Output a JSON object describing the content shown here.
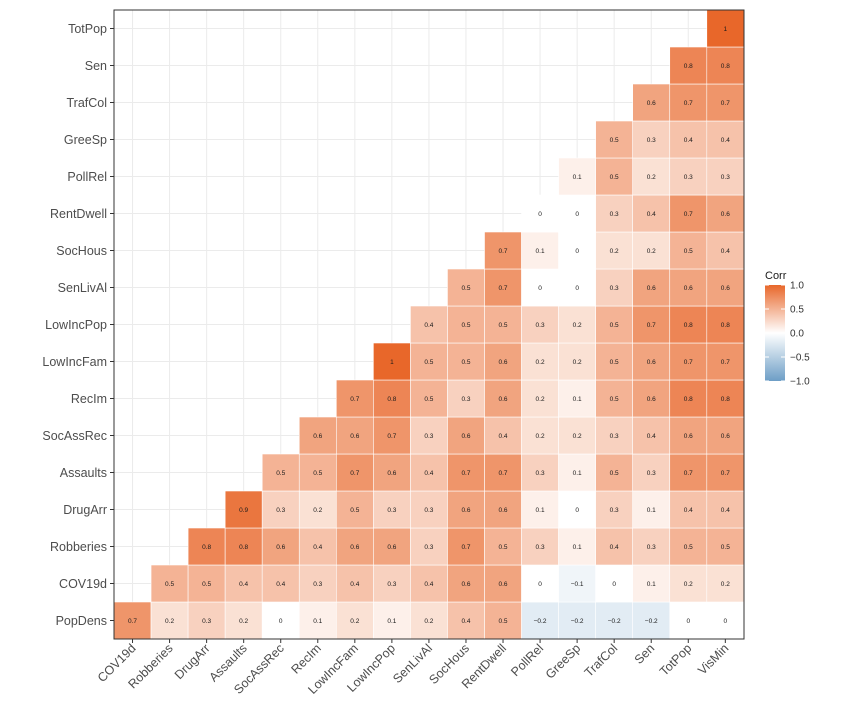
{
  "chart_data": {
    "type": "heatmap",
    "variables": [
      "PopDens",
      "COV19d",
      "Robberies",
      "DrugArr",
      "Assaults",
      "SocAssRec",
      "RecIm",
      "LowIncFam",
      "LowIncPop",
      "SenLivAl",
      "SocHous",
      "RentDwell",
      "PollRel",
      "GreeSp",
      "TrafCol",
      "Sen",
      "TotPop",
      "VisMin"
    ],
    "y_order_top_to_bottom": [
      "TotPop",
      "Sen",
      "TrafCol",
      "GreeSp",
      "PollRel",
      "RentDwell",
      "SocHous",
      "SenLivAl",
      "LowIncPop",
      "LowIncFam",
      "RecIm",
      "SocAssRec",
      "Assaults",
      "DrugArr",
      "Robberies",
      "COV19d",
      "PopDens"
    ],
    "y_tick_labels": [
      "TotPop",
      "Sen",
      "TrafCol",
      "GreeSp",
      "PollRel",
      "RentDwell",
      "SocHous",
      "SenLivAl",
      "LowIncPop",
      "LowIncFam",
      "RecIm",
      "SocAssRec",
      "Assaults",
      "DrugArr",
      "Robberies",
      "COV19d",
      "PopDens"
    ],
    "x_tick_labels": [
      "COV19d",
      "Robberies",
      "DrugArr",
      "Assaults",
      "SocAssRec",
      "RecIm",
      "LowIncFam",
      "LowIncPop",
      "SenLivAl",
      "SocHous",
      "RentDwell",
      "PollRel",
      "GreeSp",
      "TrafCol",
      "Sen",
      "TotPop",
      "VisMin"
    ],
    "x_order": [
      "COV19d",
      "Robberies",
      "DrugArr",
      "Assaults",
      "SocAssRec",
      "RecIm",
      "LowIncFam",
      "LowIncPop",
      "SenLivAl",
      "SocHous",
      "RentDwell",
      "PollRel",
      "GreeSp",
      "TrafCol",
      "Sen",
      "TotPop",
      "VisMin"
    ],
    "cells": [
      {
        "row": "PopDens",
        "values": [
          0.7,
          0.2,
          0.3,
          0.2,
          0,
          0.1,
          0.2,
          0.1,
          0.2,
          0.4,
          0.5,
          -0.2,
          -0.2,
          -0.2,
          -0.2,
          0,
          0
        ]
      },
      {
        "row": "COV19d",
        "values": [
          null,
          0.5,
          0.5,
          0.4,
          0.4,
          0.3,
          0.4,
          0.3,
          0.4,
          0.6,
          0.6,
          0,
          -0.1,
          0,
          0.1,
          0.2,
          0.2
        ]
      },
      {
        "row": "Robberies",
        "values": [
          null,
          null,
          0.8,
          0.8,
          0.6,
          0.4,
          0.6,
          0.6,
          0.3,
          0.7,
          0.5,
          0.3,
          0.1,
          0.4,
          0.3,
          0.5,
          0.5
        ]
      },
      {
        "row": "DrugArr",
        "values": [
          null,
          null,
          null,
          0.9,
          0.3,
          0.2,
          0.5,
          0.3,
          0.3,
          0.6,
          0.6,
          0.1,
          0,
          0.3,
          0.1,
          0.4,
          0.4
        ]
      },
      {
        "row": "Assaults",
        "values": [
          null,
          null,
          null,
          null,
          0.5,
          0.5,
          0.7,
          0.6,
          0.4,
          0.7,
          0.7,
          0.3,
          0.1,
          0.5,
          0.3,
          0.7,
          0.7
        ]
      },
      {
        "row": "SocAssRec",
        "values": [
          null,
          null,
          null,
          null,
          null,
          0.6,
          0.6,
          0.7,
          0.3,
          0.6,
          0.4,
          0.2,
          0.2,
          0.3,
          0.4,
          0.6,
          0.6
        ]
      },
      {
        "row": "RecIm",
        "values": [
          null,
          null,
          null,
          null,
          null,
          null,
          0.7,
          0.8,
          0.5,
          0.3,
          0.6,
          0.2,
          0.1,
          0.5,
          0.6,
          0.8,
          0.8
        ]
      },
      {
        "row": "LowIncFam",
        "values": [
          null,
          null,
          null,
          null,
          null,
          null,
          null,
          1,
          0.5,
          0.5,
          0.6,
          0.2,
          0.2,
          0.5,
          0.6,
          0.7,
          0.7
        ]
      },
      {
        "row": "LowIncPop",
        "values": [
          null,
          null,
          null,
          null,
          null,
          null,
          null,
          null,
          0.4,
          0.5,
          0.5,
          0.3,
          0.2,
          0.5,
          0.7,
          0.8,
          0.8
        ]
      },
      {
        "row": "SenLivAl",
        "values": [
          null,
          null,
          null,
          null,
          null,
          null,
          null,
          null,
          null,
          0.5,
          0.7,
          0,
          0,
          0.3,
          0.6,
          0.6,
          0.6
        ]
      },
      {
        "row": "SocHous",
        "values": [
          null,
          null,
          null,
          null,
          null,
          null,
          null,
          null,
          null,
          null,
          0.7,
          0.1,
          0,
          0.2,
          0.2,
          0.5,
          0.4
        ]
      },
      {
        "row": "RentDwell",
        "values": [
          null,
          null,
          null,
          null,
          null,
          null,
          null,
          null,
          null,
          null,
          null,
          0,
          0,
          0.3,
          0.4,
          0.7,
          0.6
        ]
      },
      {
        "row": "PollRel",
        "values": [
          null,
          null,
          null,
          null,
          null,
          null,
          null,
          null,
          null,
          null,
          null,
          null,
          0.1,
          0.5,
          0.2,
          0.3,
          0.3
        ]
      },
      {
        "row": "GreeSp",
        "values": [
          null,
          null,
          null,
          null,
          null,
          null,
          null,
          null,
          null,
          null,
          null,
          null,
          null,
          0.5,
          0.3,
          0.4,
          0.4
        ]
      },
      {
        "row": "TrafCol",
        "values": [
          null,
          null,
          null,
          null,
          null,
          null,
          null,
          null,
          null,
          null,
          null,
          null,
          null,
          null,
          0.6,
          0.7,
          0.7
        ]
      },
      {
        "row": "Sen",
        "values": [
          null,
          null,
          null,
          null,
          null,
          null,
          null,
          null,
          null,
          null,
          null,
          null,
          null,
          null,
          null,
          0.8,
          0.8
        ]
      },
      {
        "row": "TotPop",
        "values": [
          null,
          null,
          null,
          null,
          null,
          null,
          null,
          null,
          null,
          null,
          null,
          null,
          null,
          null,
          null,
          null,
          1
        ]
      }
    ],
    "legend": {
      "title": "Corr",
      "ticks": [
        "1.0",
        "0.5",
        "0.0",
        "−0.5",
        "−1.0"
      ],
      "tick_values": [
        1.0,
        0.5,
        0.0,
        -0.5,
        -1.0
      ],
      "low_color": "#6d9ec6",
      "mid_color": "#ffffff",
      "high_color": "#e8672a",
      "placement": "right"
    },
    "grid": true,
    "value_range": [
      -1,
      1
    ]
  }
}
